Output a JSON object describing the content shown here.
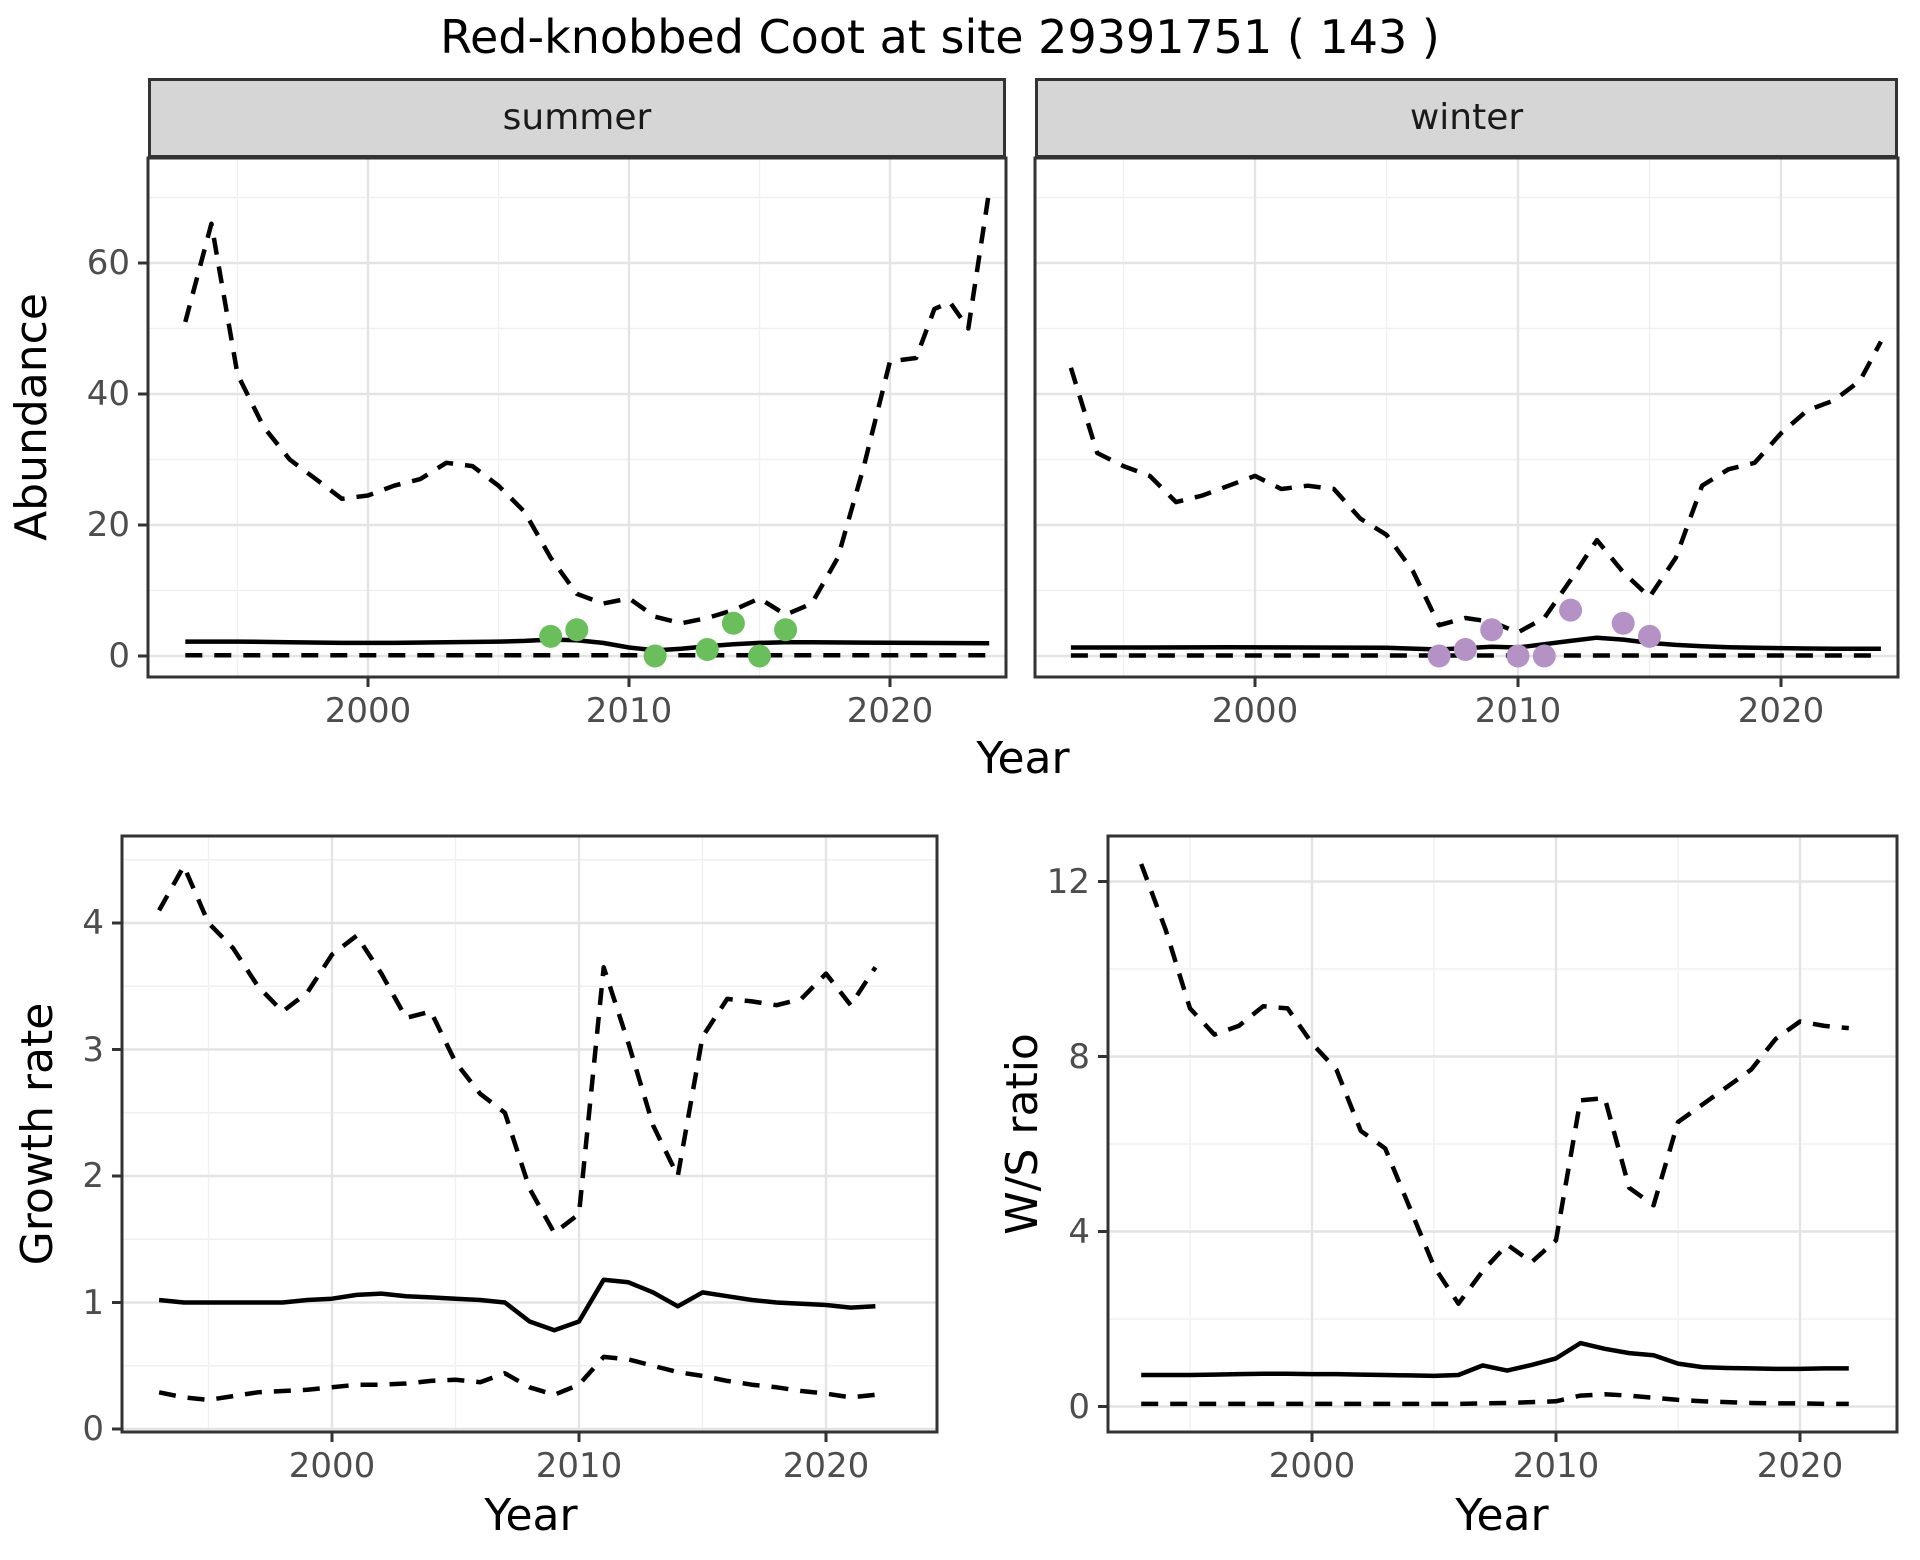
{
  "title": "Red-knobbed Coot at site 29391751 ( 143 )",
  "colors": {
    "line": "#000000",
    "grid_major": "#e4e4e4",
    "grid_minor": "#f0f0f0",
    "panel_border": "#333333",
    "strip_bg": "#d6d6d6",
    "tick_text": "#4d4d4d",
    "summer_points": "#6abf5c",
    "winter_points": "#b592c6"
  },
  "chart_data": [
    {
      "panel": "abundance-summer",
      "type": "line",
      "facet_label": "summer",
      "ylabel": "Abundance",
      "xlabel": "Year",
      "x_ticks": [
        2000,
        2010,
        2020
      ],
      "x_minor": [
        1995,
        2005,
        2015
      ],
      "y_ticks": [
        0,
        20,
        40,
        60
      ],
      "y_minor": [
        10,
        30,
        50,
        70
      ],
      "xlim": [
        1991.6,
        2024.4
      ],
      "ylim": [
        -3,
        75
      ],
      "series": [
        {
          "name": "upper-ci",
          "style": "dashed",
          "x": [
            1993,
            1994,
            1995,
            1996,
            1997,
            1998,
            1999,
            2000,
            2001,
            2002,
            2003,
            2004,
            2005,
            2006,
            2007,
            2008,
            2009,
            2010,
            2011,
            2012,
            2013,
            2014,
            2015,
            2016,
            2017,
            2018,
            2019,
            2020,
            2021,
            2021.7,
            2022.3,
            2023,
            2023.8
          ],
          "y": [
            51,
            66,
            43,
            35,
            30,
            27,
            24,
            24.5,
            26,
            27,
            29.5,
            29,
            26,
            22,
            15,
            9.5,
            8,
            8.8,
            6,
            5,
            5.8,
            7,
            8.8,
            6.3,
            8,
            15,
            29,
            45,
            45.5,
            53,
            54,
            50,
            71
          ]
        },
        {
          "name": "median",
          "style": "solid",
          "x": [
            1993,
            1995,
            1997,
            1999,
            2001,
            2003,
            2005,
            2006,
            2007,
            2008,
            2009,
            2010,
            2011,
            2012,
            2013,
            2014,
            2015,
            2016,
            2017,
            2019,
            2021,
            2023.8
          ],
          "y": [
            2.2,
            2.2,
            2.1,
            2.0,
            2.0,
            2.1,
            2.2,
            2.3,
            2.5,
            2.4,
            2.0,
            1.3,
            0.85,
            1.1,
            1.5,
            1.8,
            2.0,
            2.1,
            2.1,
            2.05,
            2.0,
            1.95
          ]
        },
        {
          "name": "lower-ci",
          "style": "dashed",
          "x": [
            1993,
            2023.8
          ],
          "y": [
            0.1,
            0.1
          ]
        }
      ],
      "points": {
        "name": "observed-counts",
        "color_key": "summer_points",
        "x": [
          2007,
          2008,
          2011,
          2013,
          2014,
          2015,
          2016
        ],
        "y": [
          3,
          4,
          0,
          1,
          5,
          0,
          4
        ]
      }
    },
    {
      "panel": "abundance-winter",
      "type": "line",
      "facet_label": "winter",
      "ylabel": "Abundance",
      "xlabel": "Year",
      "x_ticks": [
        2000,
        2010,
        2020
      ],
      "x_minor": [
        1995,
        2005,
        2015
      ],
      "y_ticks": [
        0,
        20,
        40,
        60
      ],
      "y_minor": [
        10,
        30,
        50,
        70
      ],
      "xlim": [
        1991.6,
        2024.4
      ],
      "ylim": [
        -3,
        75
      ],
      "series": [
        {
          "name": "upper-ci",
          "style": "dashed",
          "x": [
            1993,
            1994,
            1995,
            1996,
            1997,
            1998,
            1999,
            2000,
            2001,
            2002,
            2003,
            2004,
            2005,
            2006,
            2007,
            2008,
            2009,
            2010,
            2011,
            2012,
            2013,
            2014,
            2015,
            2016,
            2017,
            2018,
            2019,
            2020,
            2021,
            2022,
            2023,
            2023.8
          ],
          "y": [
            44,
            31,
            29,
            27.5,
            23.5,
            24.5,
            26,
            27.5,
            25.5,
            26,
            25.5,
            21,
            18.5,
            13,
            4.7,
            5.8,
            5.2,
            3.6,
            5.8,
            11.6,
            17.7,
            12.8,
            9,
            15,
            26,
            28.5,
            29.5,
            34,
            37.5,
            39,
            42,
            48
          ]
        },
        {
          "name": "median",
          "style": "solid",
          "x": [
            1993,
            1996,
            1999,
            2002,
            2005,
            2007,
            2008,
            2009,
            2010,
            2011,
            2012,
            2013,
            2014,
            2015,
            2016,
            2017,
            2018,
            2019,
            2020,
            2021,
            2022,
            2023.8
          ],
          "y": [
            1.3,
            1.3,
            1.35,
            1.3,
            1.25,
            1.0,
            1.2,
            1.4,
            1.3,
            1.8,
            2.3,
            2.8,
            2.5,
            2.0,
            1.7,
            1.5,
            1.35,
            1.25,
            1.2,
            1.15,
            1.1,
            1.1
          ]
        },
        {
          "name": "lower-ci",
          "style": "dashed",
          "x": [
            1993,
            2023.8
          ],
          "y": [
            0.08,
            0.08
          ]
        }
      ],
      "points": {
        "name": "observed-counts",
        "color_key": "winter_points",
        "x": [
          2007,
          2008,
          2009,
          2010,
          2011,
          2012,
          2014,
          2015
        ],
        "y": [
          0,
          1,
          4,
          0,
          0,
          7,
          5,
          3
        ]
      }
    },
    {
      "panel": "growth-rate",
      "type": "line",
      "facet_label": "",
      "ylabel": "Growth rate",
      "xlabel": "Year",
      "x_ticks": [
        2000,
        2010,
        2020
      ],
      "x_minor": [
        1995,
        2005,
        2015
      ],
      "y_ticks": [
        0,
        1,
        2,
        3,
        4
      ],
      "y_minor": [
        0.5,
        1.5,
        2.5,
        3.5,
        4.5
      ],
      "xlim": [
        1991.5,
        2024.6
      ],
      "ylim": [
        -0.02,
        4.7
      ],
      "series": [
        {
          "name": "upper-ci",
          "style": "dashed",
          "x": [
            1993,
            1994,
            1995,
            1996,
            1997,
            1998,
            1999,
            2000,
            2001,
            2002,
            2003,
            2004,
            2005,
            2006,
            2007,
            2008,
            2009,
            2010,
            2011,
            2012,
            2013,
            2014,
            2015,
            2016,
            2017,
            2018,
            2019,
            2020,
            2021,
            2022
          ],
          "y": [
            4.1,
            4.45,
            4.0,
            3.8,
            3.5,
            3.3,
            3.45,
            3.75,
            3.9,
            3.6,
            3.25,
            3.3,
            2.9,
            2.65,
            2.5,
            1.9,
            1.55,
            1.7,
            3.65,
            3.05,
            2.4,
            2.0,
            3.1,
            3.4,
            3.38,
            3.35,
            3.4,
            3.6,
            3.35,
            3.65
          ]
        },
        {
          "name": "median",
          "style": "solid",
          "x": [
            1993,
            1994,
            1995,
            1996,
            1997,
            1998,
            1999,
            2000,
            2001,
            2002,
            2003,
            2004,
            2005,
            2006,
            2007,
            2008,
            2009,
            2010,
            2011,
            2012,
            2013,
            2014,
            2015,
            2016,
            2017,
            2018,
            2019,
            2020,
            2021,
            2022
          ],
          "y": [
            1.02,
            1.0,
            1.0,
            1.0,
            1.0,
            1.0,
            1.02,
            1.03,
            1.06,
            1.07,
            1.05,
            1.04,
            1.03,
            1.02,
            1.0,
            0.85,
            0.78,
            0.85,
            1.18,
            1.16,
            1.08,
            0.97,
            1.08,
            1.05,
            1.02,
            1.0,
            0.99,
            0.98,
            0.96,
            0.97
          ]
        },
        {
          "name": "lower-ci",
          "style": "dashed",
          "x": [
            1993,
            1994,
            1995,
            1996,
            1997,
            1998,
            1999,
            2000,
            2001,
            2002,
            2003,
            2004,
            2005,
            2006,
            2007,
            2008,
            2009,
            2010,
            2011,
            2012,
            2013,
            2014,
            2015,
            2016,
            2017,
            2018,
            2019,
            2020,
            2021,
            2022
          ],
          "y": [
            0.29,
            0.25,
            0.23,
            0.26,
            0.29,
            0.3,
            0.31,
            0.33,
            0.35,
            0.35,
            0.36,
            0.38,
            0.39,
            0.37,
            0.44,
            0.33,
            0.27,
            0.35,
            0.57,
            0.55,
            0.5,
            0.45,
            0.42,
            0.38,
            0.35,
            0.33,
            0.3,
            0.28,
            0.25,
            0.27
          ]
        }
      ],
      "points": null
    },
    {
      "panel": "ws-ratio",
      "type": "line",
      "facet_label": "",
      "ylabel": "W/S ratio",
      "xlabel": "Year",
      "x_ticks": [
        2000,
        2010,
        2020
      ],
      "x_minor": [
        1995,
        2005,
        2015
      ],
      "y_ticks": [
        0,
        4,
        8,
        12
      ],
      "y_minor": [
        2,
        6,
        10
      ],
      "xlim": [
        1991.6,
        2024.0
      ],
      "ylim": [
        -0.6,
        13.1
      ],
      "series": [
        {
          "name": "upper-ci",
          "style": "dashed",
          "x": [
            1993,
            1994,
            1995,
            1996,
            1997,
            1998,
            1999,
            2000,
            2001,
            2002,
            2003,
            2004,
            2005,
            2006,
            2007,
            2008,
            2009,
            2010,
            2011,
            2012,
            2013,
            2014,
            2015,
            2016,
            2017,
            2018,
            2019,
            2020,
            2021,
            2022
          ],
          "y": [
            12.4,
            10.9,
            9.1,
            8.5,
            8.7,
            9.15,
            9.1,
            8.3,
            7.7,
            6.3,
            5.9,
            4.55,
            3.2,
            2.35,
            3.1,
            3.7,
            3.3,
            3.8,
            7.0,
            7.05,
            5.0,
            4.6,
            6.5,
            6.9,
            7.3,
            7.7,
            8.4,
            8.8,
            8.7,
            8.65
          ]
        },
        {
          "name": "median",
          "style": "solid",
          "x": [
            1993,
            1994,
            1995,
            1996,
            1997,
            1998,
            1999,
            2000,
            2001,
            2002,
            2003,
            2004,
            2005,
            2006,
            2007,
            2008,
            2009,
            2010,
            2011,
            2012,
            2013,
            2014,
            2015,
            2016,
            2017,
            2018,
            2019,
            2020,
            2021,
            2022
          ],
          "y": [
            0.72,
            0.72,
            0.72,
            0.73,
            0.74,
            0.75,
            0.75,
            0.74,
            0.74,
            0.73,
            0.72,
            0.71,
            0.7,
            0.72,
            0.94,
            0.82,
            0.95,
            1.1,
            1.45,
            1.32,
            1.22,
            1.17,
            0.98,
            0.9,
            0.88,
            0.87,
            0.86,
            0.86,
            0.87,
            0.87
          ]
        },
        {
          "name": "lower-ci",
          "style": "dashed",
          "x": [
            1993,
            1994,
            1995,
            1996,
            1997,
            1998,
            1999,
            2000,
            2001,
            2002,
            2003,
            2004,
            2005,
            2006,
            2007,
            2008,
            2009,
            2010,
            2011,
            2012,
            2013,
            2014,
            2015,
            2016,
            2017,
            2018,
            2019,
            2020,
            2021,
            2022
          ],
          "y": [
            0.06,
            0.06,
            0.06,
            0.06,
            0.06,
            0.06,
            0.06,
            0.06,
            0.06,
            0.06,
            0.06,
            0.06,
            0.06,
            0.06,
            0.07,
            0.08,
            0.1,
            0.12,
            0.25,
            0.28,
            0.25,
            0.2,
            0.15,
            0.12,
            0.1,
            0.08,
            0.07,
            0.07,
            0.06,
            0.06
          ]
        }
      ],
      "points": null
    }
  ]
}
